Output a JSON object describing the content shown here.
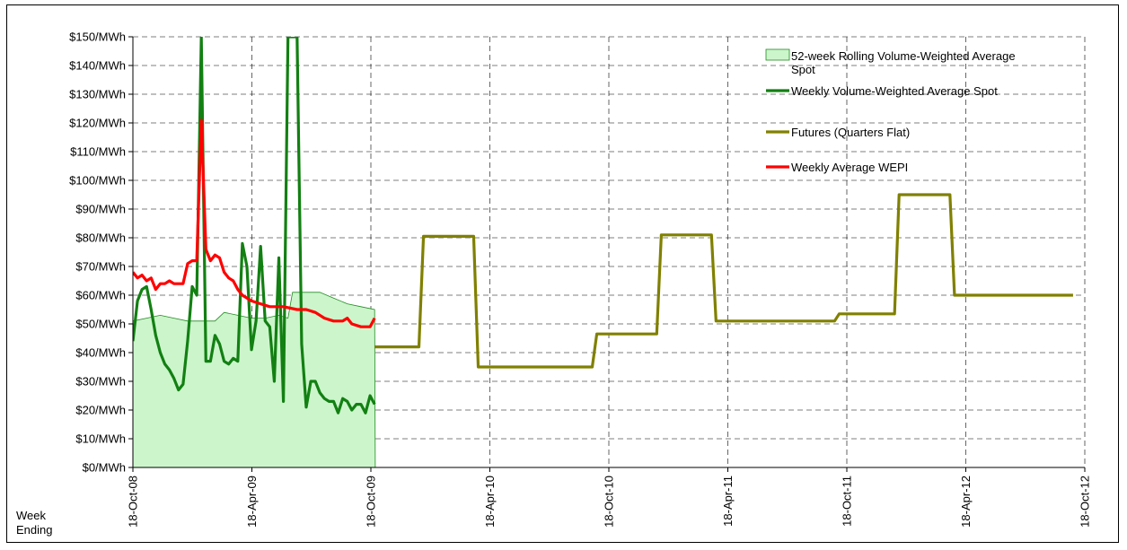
{
  "chart_data": {
    "type": "line",
    "title": "",
    "xlabel": "Week Ending",
    "ylabel": "",
    "ylim": [
      0,
      150
    ],
    "y_ticks": [
      "$0/MWh",
      "$10/MWh",
      "$20/MWh",
      "$30/MWh",
      "$40/MWh",
      "$50/MWh",
      "$60/MWh",
      "$70/MWh",
      "$80/MWh",
      "$90/MWh",
      "$100/MWh",
      "$110/MWh",
      "$120/MWh",
      "$130/MWh",
      "$140/MWh",
      "$150/MWh"
    ],
    "x_ticks": [
      "18-Oct-08",
      "18-Apr-09",
      "18-Oct-09",
      "18-Apr-10",
      "18-Oct-10",
      "18-Apr-11",
      "18-Oct-11",
      "18-Apr-12",
      "18-Oct-12"
    ],
    "x_range": [
      "2008-10-18",
      "2012-10-18"
    ],
    "grid": true,
    "legend_position": "top-right",
    "series": [
      {
        "name": "52-week Rolling Volume-Weighted Average Spot",
        "kind": "area",
        "color": "#ccf5cc",
        "edge_color": "#228B22",
        "points": [
          [
            "2008-10-18",
            51
          ],
          [
            "2008-11-08",
            52
          ],
          [
            "2008-11-29",
            53
          ],
          [
            "2008-12-20",
            52
          ],
          [
            "2009-01-10",
            51
          ],
          [
            "2009-01-31",
            51
          ],
          [
            "2009-02-21",
            51
          ],
          [
            "2009-03-07",
            54
          ],
          [
            "2009-03-28",
            53
          ],
          [
            "2009-04-18",
            52
          ],
          [
            "2009-05-09",
            52
          ],
          [
            "2009-05-30",
            53
          ],
          [
            "2009-06-13",
            52
          ],
          [
            "2009-06-20",
            61
          ],
          [
            "2009-07-11",
            61
          ],
          [
            "2009-08-01",
            61
          ],
          [
            "2009-08-22",
            59
          ],
          [
            "2009-09-12",
            57
          ],
          [
            "2009-10-03",
            56
          ],
          [
            "2009-10-24",
            55
          ],
          [
            "2009-10-25",
            0
          ]
        ]
      },
      {
        "name": "Weekly Volume-Weighted Average Spot",
        "kind": "line",
        "color": "#128012",
        "points": [
          [
            "2008-10-18",
            44
          ],
          [
            "2008-10-25",
            58
          ],
          [
            "2008-11-01",
            62
          ],
          [
            "2008-11-08",
            63
          ],
          [
            "2008-11-15",
            55
          ],
          [
            "2008-11-22",
            46
          ],
          [
            "2008-11-29",
            40
          ],
          [
            "2008-12-06",
            36
          ],
          [
            "2008-12-13",
            34
          ],
          [
            "2008-12-20",
            31
          ],
          [
            "2008-12-27",
            27
          ],
          [
            "2009-01-03",
            29
          ],
          [
            "2009-01-10",
            44
          ],
          [
            "2009-01-17",
            63
          ],
          [
            "2009-01-24",
            60
          ],
          [
            "2009-01-31",
            150
          ],
          [
            "2009-02-07",
            37
          ],
          [
            "2009-02-14",
            37
          ],
          [
            "2009-02-21",
            46
          ],
          [
            "2009-02-28",
            43
          ],
          [
            "2009-03-07",
            37
          ],
          [
            "2009-03-14",
            36
          ],
          [
            "2009-03-21",
            38
          ],
          [
            "2009-03-28",
            37
          ],
          [
            "2009-04-04",
            78
          ],
          [
            "2009-04-11",
            70
          ],
          [
            "2009-04-18",
            41
          ],
          [
            "2009-04-25",
            51
          ],
          [
            "2009-05-02",
            77
          ],
          [
            "2009-05-09",
            51
          ],
          [
            "2009-05-16",
            49
          ],
          [
            "2009-05-23",
            30
          ],
          [
            "2009-05-30",
            73
          ],
          [
            "2009-06-06",
            23
          ],
          [
            "2009-06-13",
            150
          ],
          [
            "2009-06-20",
            150
          ],
          [
            "2009-06-27",
            150
          ],
          [
            "2009-07-04",
            43
          ],
          [
            "2009-07-11",
            21
          ],
          [
            "2009-07-18",
            30
          ],
          [
            "2009-07-25",
            30
          ],
          [
            "2009-08-01",
            26
          ],
          [
            "2009-08-08",
            24
          ],
          [
            "2009-08-15",
            23
          ],
          [
            "2009-08-22",
            23
          ],
          [
            "2009-08-29",
            19
          ],
          [
            "2009-09-05",
            24
          ],
          [
            "2009-09-12",
            23
          ],
          [
            "2009-09-19",
            20
          ],
          [
            "2009-09-26",
            22
          ],
          [
            "2009-10-03",
            22
          ],
          [
            "2009-10-10",
            19
          ],
          [
            "2009-10-17",
            25
          ],
          [
            "2009-10-24",
            22
          ]
        ]
      },
      {
        "name": "Futures (Quarters Flat)",
        "kind": "line",
        "color": "#808000",
        "points": [
          [
            "2009-10-24",
            42
          ],
          [
            "2009-12-31",
            42
          ],
          [
            "2010-01-07",
            80.5
          ],
          [
            "2010-03-25",
            80.5
          ],
          [
            "2010-04-01",
            35
          ],
          [
            "2010-09-23",
            35
          ],
          [
            "2010-09-30",
            46.5
          ],
          [
            "2010-12-31",
            46.5
          ],
          [
            "2011-01-07",
            81
          ],
          [
            "2011-03-25",
            81
          ],
          [
            "2011-04-01",
            51
          ],
          [
            "2011-09-30",
            51
          ],
          [
            "2011-10-07",
            53.5
          ],
          [
            "2011-12-31",
            53.5
          ],
          [
            "2012-01-07",
            95
          ],
          [
            "2012-03-25",
            95
          ],
          [
            "2012-04-01",
            60
          ],
          [
            "2012-09-30",
            60
          ]
        ]
      },
      {
        "name": "Weekly Average WEPI",
        "kind": "line",
        "color": "#ff0000",
        "points": [
          [
            "2008-10-18",
            68
          ],
          [
            "2008-10-25",
            66
          ],
          [
            "2008-11-01",
            67
          ],
          [
            "2008-11-08",
            65
          ],
          [
            "2008-11-15",
            66
          ],
          [
            "2008-11-22",
            62
          ],
          [
            "2008-11-29",
            64
          ],
          [
            "2008-12-06",
            64
          ],
          [
            "2008-12-13",
            65
          ],
          [
            "2008-12-20",
            64
          ],
          [
            "2008-12-27",
            64
          ],
          [
            "2009-01-03",
            64
          ],
          [
            "2009-01-10",
            71
          ],
          [
            "2009-01-17",
            72
          ],
          [
            "2009-01-24",
            72
          ],
          [
            "2009-01-31",
            121
          ],
          [
            "2009-02-07",
            76
          ],
          [
            "2009-02-14",
            72
          ],
          [
            "2009-02-21",
            74
          ],
          [
            "2009-02-28",
            73
          ],
          [
            "2009-03-07",
            68
          ],
          [
            "2009-03-14",
            66
          ],
          [
            "2009-03-21",
            65
          ],
          [
            "2009-03-28",
            62
          ],
          [
            "2009-04-04",
            60
          ],
          [
            "2009-04-18",
            58
          ],
          [
            "2009-05-02",
            57
          ],
          [
            "2009-05-16",
            56
          ],
          [
            "2009-06-06",
            56
          ],
          [
            "2009-06-27",
            55
          ],
          [
            "2009-07-11",
            55
          ],
          [
            "2009-07-25",
            54
          ],
          [
            "2009-08-08",
            52
          ],
          [
            "2009-08-22",
            51
          ],
          [
            "2009-09-05",
            51
          ],
          [
            "2009-09-12",
            52
          ],
          [
            "2009-09-19",
            50
          ],
          [
            "2009-10-03",
            49
          ],
          [
            "2009-10-17",
            49
          ],
          [
            "2009-10-24",
            52
          ]
        ]
      }
    ],
    "legend_order": [
      0,
      1,
      2,
      3
    ]
  }
}
